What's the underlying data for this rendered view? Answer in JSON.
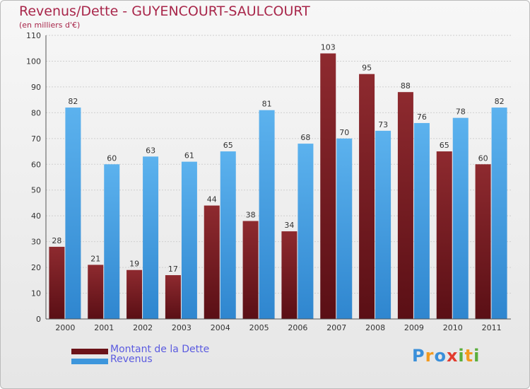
{
  "chart_data": {
    "type": "bar",
    "title": "Revenus/Dette - GUYENCOURT-SAULCOURT",
    "subtitle": "(en milliers d'€)",
    "categories": [
      "2000",
      "2001",
      "2002",
      "2003",
      "2004",
      "2005",
      "2006",
      "2007",
      "2008",
      "2009",
      "2010",
      "2011"
    ],
    "series": [
      {
        "name": "Montant de la Dette",
        "color": "#7a1f24",
        "values": [
          28,
          21,
          19,
          17,
          44,
          38,
          34,
          103,
          95,
          88,
          65,
          60
        ]
      },
      {
        "name": "Revenus",
        "color": "#4ea6e6",
        "values": [
          82,
          60,
          63,
          61,
          65,
          81,
          68,
          70,
          73,
          76,
          78,
          82
        ]
      }
    ],
    "ylim": [
      0,
      110
    ],
    "yticks": [
      0,
      10,
      20,
      30,
      40,
      50,
      60,
      70,
      80,
      90,
      100,
      110
    ],
    "grid": true,
    "legend_position": "bottom-left"
  },
  "logo": {
    "letters": [
      {
        "ch": "P",
        "color": "#3a8fd9"
      },
      {
        "ch": "r",
        "color": "#f29a1e"
      },
      {
        "ch": "o",
        "color": "#3a8fd9"
      },
      {
        "ch": "x",
        "color": "#e23b2e"
      },
      {
        "ch": "i",
        "color": "#5aae3c"
      },
      {
        "ch": "t",
        "color": "#f29a1e"
      },
      {
        "ch": "i",
        "color": "#5aae3c"
      }
    ]
  }
}
